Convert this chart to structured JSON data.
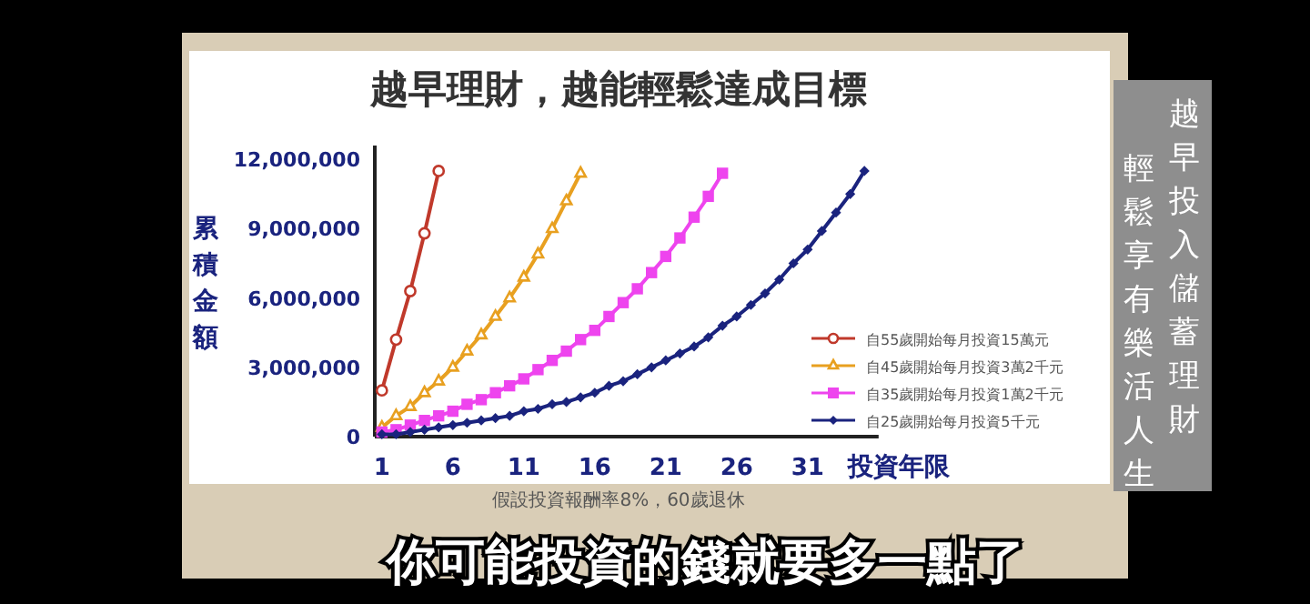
{
  "chart_data": {
    "type": "line",
    "title": "越早理財，越能輕鬆達成目標",
    "xlabel": "投資年限",
    "ylabel": "累積金額",
    "xlim": [
      0.5,
      36
    ],
    "xticks": [
      1,
      6,
      11,
      16,
      21,
      26,
      31
    ],
    "ylim": [
      0,
      12600000
    ],
    "yticks": [
      {
        "value": 0,
        "label": "0"
      },
      {
        "value": 3000000,
        "label": "3,000,000"
      },
      {
        "value": 6000000,
        "label": "6,000,000"
      },
      {
        "value": 9000000,
        "label": "9,000,000"
      },
      {
        "value": 12000000,
        "label": "12,000,000"
      }
    ],
    "grid": false,
    "legend": "right",
    "series": [
      {
        "name": "自55歲開始每月投資15萬元",
        "color": "#c0392b",
        "marker": "circle",
        "x": [
          1,
          2,
          3,
          4,
          5
        ],
        "values": [
          2000000,
          4200000,
          6300000,
          8800000,
          11500000
        ]
      },
      {
        "name": "自45歲開始每月投資3萬2千元",
        "color": "#e8a020",
        "marker": "triangle",
        "x": [
          1,
          2,
          3,
          4,
          5,
          6,
          7,
          8,
          9,
          10,
          11,
          12,
          13,
          14,
          15
        ],
        "values": [
          400000,
          900000,
          1300000,
          1900000,
          2400000,
          3000000,
          3700000,
          4400000,
          5200000,
          6000000,
          6900000,
          7900000,
          9000000,
          10200000,
          11400000
        ]
      },
      {
        "name": "自35歲開始每月投資1萬2千元",
        "color": "#ee44ee",
        "marker": "square",
        "x": [
          1,
          2,
          3,
          4,
          5,
          6,
          7,
          8,
          9,
          10,
          11,
          12,
          13,
          14,
          15,
          16,
          17,
          18,
          19,
          20,
          21,
          22,
          23,
          24,
          25
        ],
        "values": [
          200000,
          300000,
          500000,
          700000,
          900000,
          1100000,
          1400000,
          1600000,
          1900000,
          2200000,
          2500000,
          2900000,
          3300000,
          3700000,
          4200000,
          4600000,
          5200000,
          5800000,
          6400000,
          7100000,
          7800000,
          8600000,
          9500000,
          10400000,
          11400000
        ]
      },
      {
        "name": "自25歲開始每月投資5千元",
        "color": "#1a237e",
        "marker": "diamond",
        "x": [
          1,
          2,
          3,
          4,
          5,
          6,
          7,
          8,
          9,
          10,
          11,
          12,
          13,
          14,
          15,
          16,
          17,
          18,
          19,
          20,
          21,
          22,
          23,
          24,
          25,
          26,
          27,
          28,
          29,
          30,
          31,
          32,
          33,
          34,
          35
        ],
        "values": [
          100000,
          100000,
          200000,
          300000,
          400000,
          500000,
          600000,
          700000,
          800000,
          900000,
          1100000,
          1200000,
          1400000,
          1500000,
          1700000,
          1900000,
          2200000,
          2400000,
          2700000,
          3000000,
          3300000,
          3600000,
          3900000,
          4300000,
          4800000,
          5200000,
          5700000,
          6200000,
          6800000,
          7500000,
          8100000,
          8900000,
          9700000,
          10500000,
          11500000
        ]
      }
    ],
    "annotations": [
      "假設投資報酬率8%，60歲退休",
      "越早投入儲蓄理財",
      "輕鬆享有樂活人生",
      "你可能投資的錢就要多一點了"
    ]
  }
}
